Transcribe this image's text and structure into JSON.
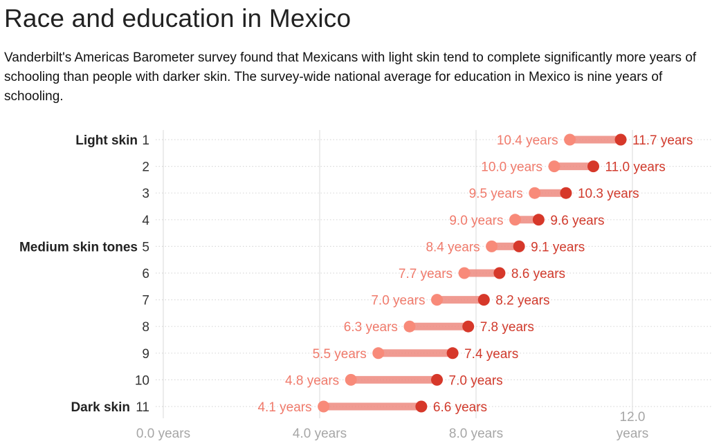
{
  "title": "Race and education in Mexico",
  "subtitle": "Vanderbilt's Americas Barometer survey found that Mexicans with light skin tend to complete significantly more years of schooling than people with darker skin. The survey-wide national average for education in Mexico is nine years of schooling.",
  "colors": {
    "low_point": "#f88a79",
    "high_point": "#d6382a",
    "bar": "#ee8a80",
    "low_label": "#f07a6b",
    "high_label": "#d13a2c",
    "grid": "#d9d9d9",
    "axis_text": "#a6a6a6"
  },
  "chart_data": {
    "type": "dumbbell",
    "title": "Race and education in Mexico",
    "xlim": [
      0,
      14
    ],
    "x_ticks": [
      {
        "value": 0,
        "label": [
          "0.0 years"
        ]
      },
      {
        "value": 4,
        "label": [
          "4.0 years"
        ]
      },
      {
        "value": 8,
        "label": [
          "8.0 years"
        ]
      },
      {
        "value": 12,
        "label": [
          "12.0",
          "years"
        ]
      }
    ],
    "grid": true,
    "rows": [
      {
        "category": "1",
        "group_label": "Light skin",
        "low": 10.4,
        "high": 11.7,
        "low_label": "10.4 years",
        "high_label": "11.7 years"
      },
      {
        "category": "2",
        "group_label": "",
        "low": 10.0,
        "high": 11.0,
        "low_label": "10.0 years",
        "high_label": "11.0 years"
      },
      {
        "category": "3",
        "group_label": "",
        "low": 9.5,
        "high": 10.3,
        "low_label": "9.5 years",
        "high_label": "10.3 years"
      },
      {
        "category": "4",
        "group_label": "",
        "low": 9.0,
        "high": 9.6,
        "low_label": "9.0 years",
        "high_label": "9.6 years"
      },
      {
        "category": "5",
        "group_label": "Medium skin tones",
        "low": 8.4,
        "high": 9.1,
        "low_label": "8.4 years",
        "high_label": "9.1 years"
      },
      {
        "category": "6",
        "group_label": "",
        "low": 7.7,
        "high": 8.6,
        "low_label": "7.7 years",
        "high_label": "8.6 years"
      },
      {
        "category": "7",
        "group_label": "",
        "low": 7.0,
        "high": 8.2,
        "low_label": "7.0 years",
        "high_label": "8.2 years"
      },
      {
        "category": "8",
        "group_label": "",
        "low": 6.3,
        "high": 7.8,
        "low_label": "6.3 years",
        "high_label": "7.8 years"
      },
      {
        "category": "9",
        "group_label": "",
        "low": 5.5,
        "high": 7.4,
        "low_label": "5.5 years",
        "high_label": "7.4 years"
      },
      {
        "category": "10",
        "group_label": "",
        "low": 4.8,
        "high": 7.0,
        "low_label": "4.8 years",
        "high_label": "7.0 years"
      },
      {
        "category": "11",
        "group_label": "Dark skin",
        "low": 4.1,
        "high": 6.6,
        "low_label": "4.1 years",
        "high_label": "6.6 years"
      }
    ]
  }
}
